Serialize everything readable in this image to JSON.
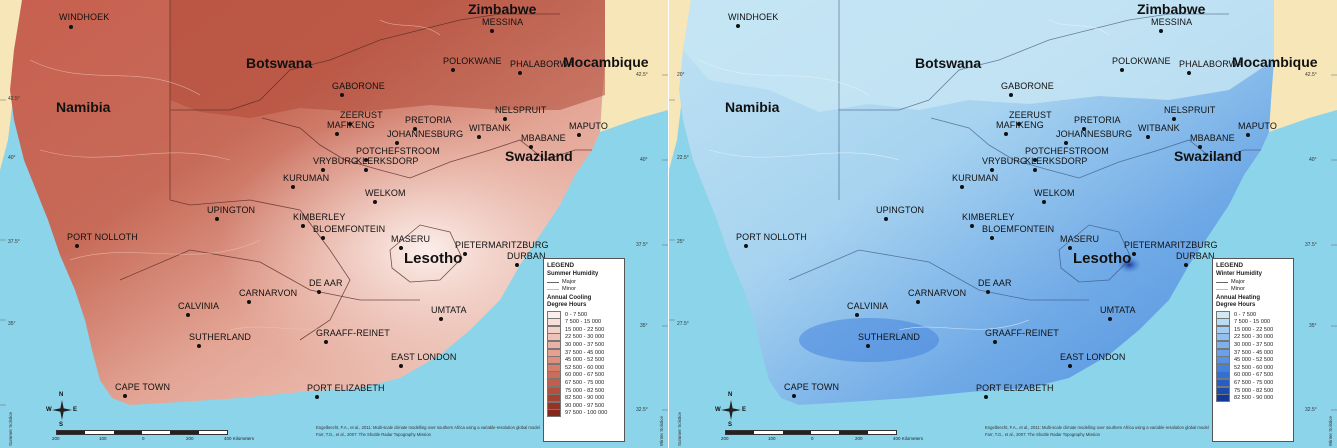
{
  "maps": [
    {
      "id": "cooling",
      "legend": {
        "header": "LEGEND",
        "subtitle": "Summer Humidity",
        "line_major": "Major",
        "line_minor": "Minor",
        "title_line1": "Annual Cooling",
        "title_line2": "Degree Hours",
        "classes": [
          "0 - 7 500",
          "7 500 - 15 000",
          "15 000 - 22 500",
          "22 500 - 30 000",
          "30 000 - 37 500",
          "37 500 - 45 000",
          "45 000 - 52 500",
          "52 500 - 60 000",
          "60 000 - 67 500",
          "67 500 - 75 000",
          "75 000 - 82 500",
          "82 500 - 90 000",
          "90 000 - 97 500",
          "97 500 - 100 000"
        ],
        "colors": [
          "#fbeeea",
          "#f7e0da",
          "#f3d1c8",
          "#efc2b7",
          "#eab1a4",
          "#e5a090",
          "#de8f7e",
          "#d67e6c",
          "#cc6d5b",
          "#c15e4c",
          "#b44f3e",
          "#a54131",
          "#953425",
          "#85281b"
        ]
      },
      "credit_line1": "Engelbrecht, F.A., et al., 2011: Multi-scale climate modelling over southern Africa using a variable-resolution global model",
      "credit_line2": "Farr, T.G., et al., 2007: The Shuttle Radar Topography Mission",
      "side_left": "Summer Solstice",
      "side_right": "Winter Solstice"
    },
    {
      "id": "heating",
      "legend": {
        "header": "LEGEND",
        "subtitle": "Winter Humidity",
        "line_major": "Major",
        "line_minor": "Minor",
        "title_line1": "Annual Heating",
        "title_line2": "Degree Hours",
        "classes": [
          "0 - 7 500",
          "7 500 - 15 000",
          "15 000 - 22 500",
          "22 500 - 30 000",
          "30 000 - 37 500",
          "37 500 - 45 000",
          "45 000 - 52 500",
          "52 500 - 60 000",
          "60 000 - 67 500",
          "67 500 - 75 000",
          "75 000 - 82 500",
          "82 500 - 90 000"
        ],
        "colors": [
          "#cfe9f5",
          "#b9dbf3",
          "#a6cdf0",
          "#92bfee",
          "#7eb0eb",
          "#6aa1e8",
          "#5792e4",
          "#4582dc",
          "#3470d2",
          "#245ec4",
          "#1a4bb0",
          "#13389a"
        ]
      },
      "credit_line1": "Engelbrecht, F.A., et al., 2011: Multi-scale climate modelling over southern Africa using a variable-resolution global model",
      "credit_line2": "Farr, T.G., et al., 2007: The Shuttle Radar Topography Mission",
      "side_left": "Summer Solstice",
      "side_right": "Winter Solstice"
    }
  ],
  "places": {
    "windhoek": "WINDHOEK",
    "messina": "MESSINA",
    "polokwane": "POLOKWANE",
    "phalaborwa": "PHALABORWA",
    "gaborone": "GABORONE",
    "zeerust": "ZEERUST",
    "mafikeng": "MAFIKENG",
    "pretoria": "PRETORIA",
    "johannesburg": "JOHANNESBURG",
    "witbank": "WITBANK",
    "nelspruit": "NELSPRUIT",
    "mbabane": "MBABANE",
    "maputo": "MAPUTO",
    "potchefstroom": "POTCHEFSTROOM",
    "klerksdorp": "KLERKSDORP",
    "vryburg": "VRYBURG",
    "kuruman": "KURUMAN",
    "welkom": "WELKOM",
    "upington": "UPINGTON",
    "kimberley": "KIMBERLEY",
    "bloemfontein": "BLOEMFONTEIN",
    "maseru": "MASERU",
    "pietermaritzburg": "PIETERMARITZBURG",
    "durban": "DURBAN",
    "port_nolloth": "PORT NOLLOTH",
    "de_aar": "DE AAR",
    "calvinia": "CALVINIA",
    "carnarvon": "CARNARVON",
    "umtata": "UMTATA",
    "sutherland": "SUTHERLAND",
    "graaff_reinet": "GRAAFF-REINET",
    "east_london": "EAST LONDON",
    "cape_town": "CAPE TOWN",
    "port_elizabeth": "PORT ELIZABETH"
  },
  "countries": {
    "zimbabwe": "Zimbabwe",
    "botswana": "Botswana",
    "mocambique": "Mocambique",
    "namibia": "Namibia",
    "swaziland": "Swaziland",
    "lesotho": "Lesotho"
  },
  "scale": {
    "t200": "200",
    "t100": "100",
    "t0": "0",
    "t200b": "200",
    "t400": "400 Kilometers"
  },
  "compass": {
    "n": "N",
    "s": "S",
    "e": "E",
    "w": "W"
  },
  "lat_labels": {
    "l1": "42.5°",
    "l2": "40°",
    "l3": "37.5°",
    "l4": "35°",
    "l5": "32.5°",
    "r1": "20°",
    "r2": "22.5°",
    "r3": "25°",
    "r4": "27.5°"
  }
}
